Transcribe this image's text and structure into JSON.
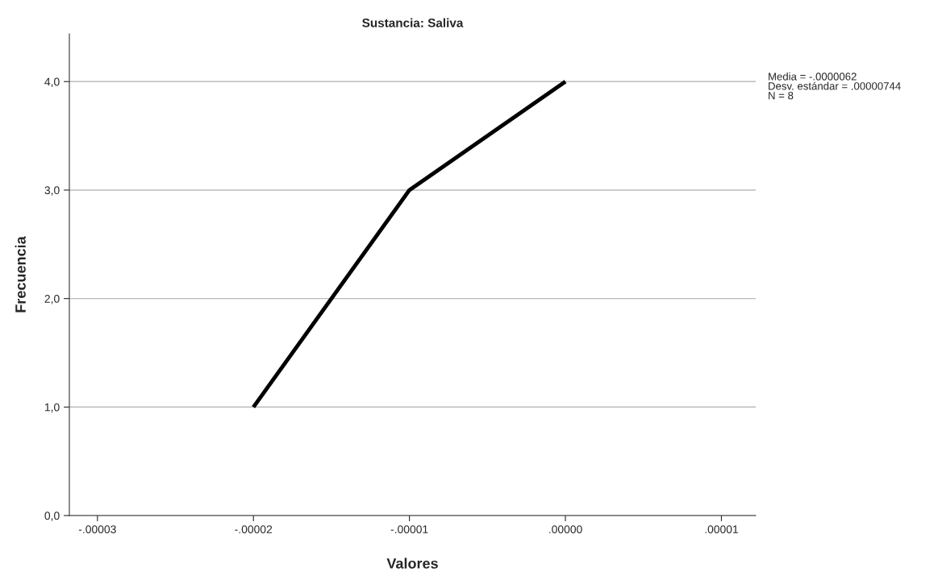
{
  "chart_data": {
    "type": "line",
    "title": "Sustancia: Saliva",
    "xlabel": "Valores",
    "ylabel": "Frecuencia",
    "x": [
      -2e-05,
      -1e-05,
      0
    ],
    "series": [
      {
        "color": "#000000",
        "values": [
          1,
          3,
          4
        ]
      }
    ],
    "xlim": [
      -3.18e-05,
      1.22e-05
    ],
    "xticks": [
      {
        "value": -3e-05,
        "label": "-.00003"
      },
      {
        "value": -2e-05,
        "label": "-.00002"
      },
      {
        "value": -1e-05,
        "label": "-.00001"
      },
      {
        "value": 0,
        "label": ".00000"
      },
      {
        "value": 1e-05,
        "label": ".00001"
      }
    ],
    "ylim": [
      0,
      4.44
    ],
    "yticks": [
      {
        "value": 0,
        "label": "0,0"
      },
      {
        "value": 1,
        "label": "1,0"
      },
      {
        "value": 2,
        "label": "2,0"
      },
      {
        "value": 3,
        "label": "3,0"
      },
      {
        "value": 4,
        "label": "4,0"
      }
    ],
    "grid": "y",
    "marker": "none",
    "line_style": "solid",
    "annotations": [
      "Media = -.0000062\nDesv. estándar = .00000744\nN = 8"
    ]
  }
}
